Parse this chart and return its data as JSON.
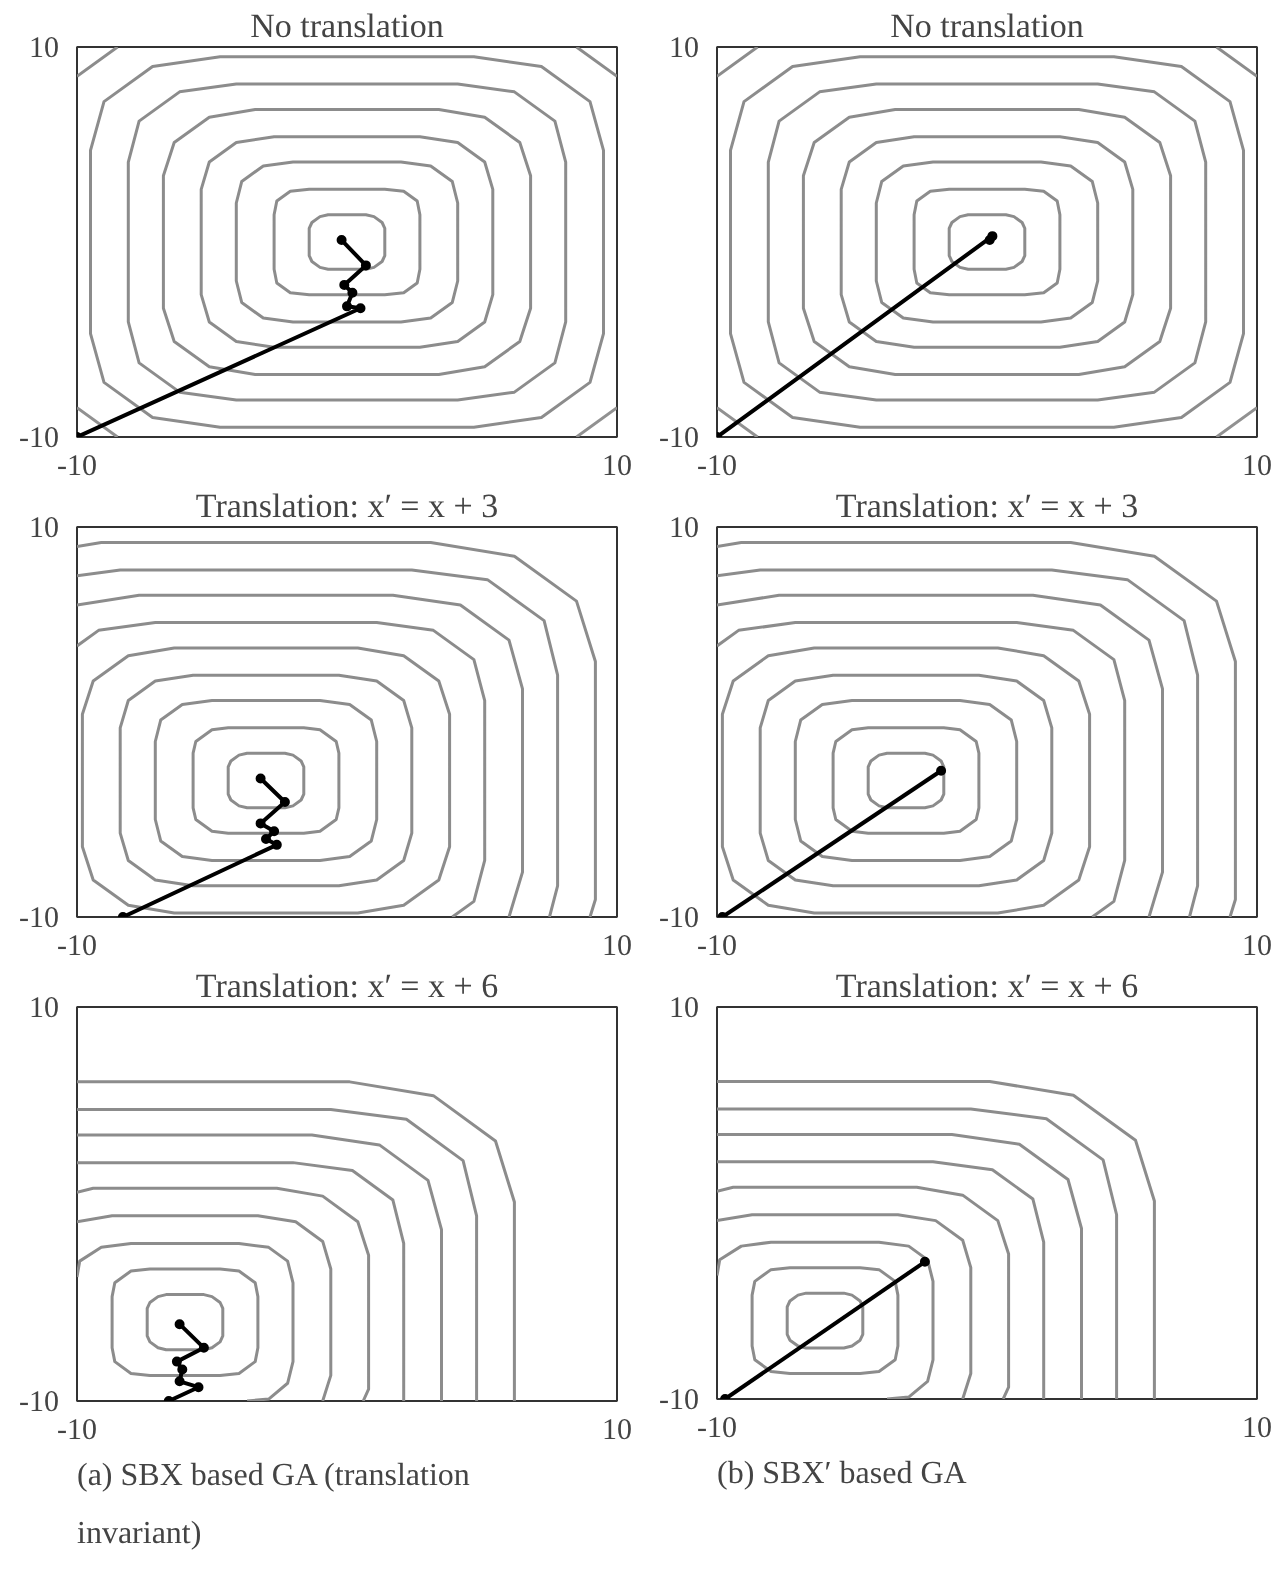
{
  "chart_data": [
    {
      "type": "line",
      "title": "No translation",
      "xlim": [
        -10,
        10
      ],
      "ylim": [
        -10,
        10
      ],
      "xticks": [
        -10,
        10
      ],
      "yticks": [
        -10,
        10
      ],
      "series": [
        {
          "color": "#8c8c8c",
          "x": [
            1.4,
            1.4,
            1.3,
            1.0,
            0.7,
            -0.7,
            -1.0,
            -1.3,
            -1.4,
            -1.4,
            null,
            -1.4,
            -1.4,
            -1.3,
            -1.0,
            -0.7,
            0.7,
            1.0,
            1.3,
            1.4,
            1.4,
            null,
            2.7,
            2.7,
            2.6,
            2.1,
            1.4,
            -1.4,
            -2.1,
            -2.6,
            -2.7,
            -2.7,
            null,
            -2.7,
            -2.7,
            -2.6,
            -2.1,
            -1.4,
            1.4,
            2.1,
            2.6,
            2.7,
            2.7,
            null,
            4.1,
            4.1,
            3.9,
            3.1,
            2.0,
            -2.0,
            -3.1,
            -3.9,
            -4.1,
            -4.1,
            null,
            -4.1,
            -4.1,
            -3.9,
            -3.1,
            -2.0,
            2.0,
            3.1,
            3.9,
            4.1,
            4.1,
            null,
            5.4,
            5.4,
            5.1,
            4.1,
            2.7,
            -2.7,
            -4.1,
            -5.1,
            -5.4,
            -5.4,
            null,
            -5.4,
            -5.4,
            -5.1,
            -4.1,
            -2.7,
            2.7,
            4.1,
            5.1,
            5.4,
            5.4,
            null,
            6.8,
            6.8,
            6.4,
            5.1,
            3.4,
            -3.4,
            -5.1,
            -6.4,
            -6.8,
            -6.8,
            null,
            -6.8,
            -6.8,
            -6.4,
            -5.1,
            -3.4,
            3.4,
            5.1,
            6.4,
            6.8,
            6.8,
            null,
            8.1,
            8.1,
            7.7,
            6.2,
            4.1,
            -4.1,
            -6.2,
            -7.7,
            -8.1,
            -8.1,
            null,
            -8.1,
            -8.1,
            -7.7,
            -6.2,
            -4.1,
            4.1,
            6.2,
            7.7,
            8.1,
            8.1,
            null,
            9.5,
            9.5,
            9.0,
            7.2,
            4.7,
            -4.7,
            -7.2,
            -9.0,
            -9.5,
            -9.5,
            null,
            -9.5,
            -9.5,
            -9.0,
            -7.2,
            -4.7,
            4.7,
            7.2,
            9.0,
            9.5,
            9.5,
            null,
            8.5,
            10,
            null,
            -8.5,
            -10
          ],
          "values": [
            0,
            0.7,
            1.0,
            1.3,
            1.4,
            1.4,
            1.3,
            1.0,
            0.7,
            0,
            null,
            0,
            -0.7,
            -1.0,
            -1.3,
            -1.4,
            -1.4,
            -1.3,
            -1.0,
            -0.7,
            0,
            null,
            0,
            1.4,
            2.1,
            2.6,
            2.7,
            2.7,
            2.6,
            2.1,
            1.4,
            0,
            null,
            0,
            -1.4,
            -2.1,
            -2.6,
            -2.7,
            -2.7,
            -2.6,
            -2.1,
            -1.4,
            0,
            null,
            0,
            2.0,
            3.1,
            3.9,
            4.1,
            4.1,
            3.9,
            3.1,
            2.0,
            0,
            null,
            0,
            -2.0,
            -3.1,
            -3.9,
            -4.1,
            -4.1,
            -3.9,
            -3.1,
            -2.0,
            0,
            null,
            0,
            2.7,
            4.1,
            5.1,
            5.4,
            5.4,
            5.1,
            4.1,
            2.7,
            0,
            null,
            0,
            -2.7,
            -4.1,
            -5.1,
            -5.4,
            -5.4,
            -5.1,
            -4.1,
            -2.7,
            0,
            null,
            0,
            3.4,
            5.1,
            6.4,
            6.8,
            6.8,
            6.4,
            5.1,
            3.4,
            0,
            null,
            0,
            -3.4,
            -5.1,
            -6.4,
            -6.8,
            -6.8,
            -6.4,
            -5.1,
            -3.4,
            0,
            null,
            0,
            4.1,
            6.2,
            7.7,
            8.1,
            8.1,
            7.7,
            6.2,
            4.1,
            0,
            null,
            0,
            -4.1,
            -6.2,
            -7.7,
            -8.1,
            -8.1,
            -7.7,
            -6.2,
            -4.1,
            0,
            null,
            0,
            4.7,
            7.2,
            9.0,
            9.5,
            9.5,
            9.0,
            7.2,
            4.7,
            0,
            null,
            0,
            -4.7,
            -7.2,
            -9.0,
            -9.5,
            -9.5,
            -9.0,
            -7.2,
            -4.7,
            0,
            null,
            10,
            8.5,
            null,
            10,
            8.5
          ]
        },
        {
          "color": "#919191",
          "x": [
            -10,
            -8.5,
            null,
            10,
            8.5
          ],
          "values": [
            -8.5,
            -10,
            null,
            -8.5,
            -10
          ]
        },
        {
          "color": "#000000",
          "marker": "circle",
          "x": [
            -10,
            0.5,
            0.0,
            0.2,
            -0.1,
            0.7,
            -0.2
          ],
          "values": [
            -10,
            -3.4,
            -3.3,
            -2.6,
            -2.2,
            -1.2,
            0.1
          ]
        }
      ]
    },
    {
      "type": "line",
      "title": "No translation",
      "xlim": [
        -10,
        10
      ],
      "ylim": [
        -10,
        10
      ],
      "xticks": [
        -10,
        10
      ],
      "yticks": [
        -10,
        10
      ],
      "series": [
        {
          "color": "#8c8c8c",
          "x": [
            1.4,
            1.4,
            1.3,
            1.0,
            0.7,
            -0.7,
            -1.0,
            -1.3,
            -1.4,
            -1.4,
            null,
            -1.4,
            -1.4,
            -1.3,
            -1.0,
            -0.7,
            0.7,
            1.0,
            1.3,
            1.4,
            1.4,
            null,
            2.7,
            2.7,
            2.6,
            2.1,
            1.4,
            -1.4,
            -2.1,
            -2.6,
            -2.7,
            -2.7,
            null,
            -2.7,
            -2.7,
            -2.6,
            -2.1,
            -1.4,
            1.4,
            2.1,
            2.6,
            2.7,
            2.7,
            null,
            4.1,
            4.1,
            3.9,
            3.1,
            2.0,
            -2.0,
            -3.1,
            -3.9,
            -4.1,
            -4.1,
            null,
            -4.1,
            -4.1,
            -3.9,
            -3.1,
            -2.0,
            2.0,
            3.1,
            3.9,
            4.1,
            4.1,
            null,
            5.4,
            5.4,
            5.1,
            4.1,
            2.7,
            -2.7,
            -4.1,
            -5.1,
            -5.4,
            -5.4,
            null,
            -5.4,
            -5.4,
            -5.1,
            -4.1,
            -2.7,
            2.7,
            4.1,
            5.1,
            5.4,
            5.4,
            null,
            6.8,
            6.8,
            6.4,
            5.1,
            3.4,
            -3.4,
            -5.1,
            -6.4,
            -6.8,
            -6.8,
            null,
            -6.8,
            -6.8,
            -6.4,
            -5.1,
            -3.4,
            3.4,
            5.1,
            6.4,
            6.8,
            6.8,
            null,
            8.1,
            8.1,
            7.7,
            6.2,
            4.1,
            -4.1,
            -6.2,
            -7.7,
            -8.1,
            -8.1,
            null,
            -8.1,
            -8.1,
            -7.7,
            -6.2,
            -4.1,
            4.1,
            6.2,
            7.7,
            8.1,
            8.1,
            null,
            9.5,
            9.5,
            9.0,
            7.2,
            4.7,
            -4.7,
            -7.2,
            -9.0,
            -9.5,
            -9.5,
            null,
            -9.5,
            -9.5,
            -9.0,
            -7.2,
            -4.7,
            4.7,
            7.2,
            9.0,
            9.5,
            9.5,
            null,
            8.5,
            10,
            null,
            -8.5,
            -10
          ],
          "values": [
            0,
            0.7,
            1.0,
            1.3,
            1.4,
            1.4,
            1.3,
            1.0,
            0.7,
            0,
            null,
            0,
            -0.7,
            -1.0,
            -1.3,
            -1.4,
            -1.4,
            -1.3,
            -1.0,
            -0.7,
            0,
            null,
            0,
            1.4,
            2.1,
            2.6,
            2.7,
            2.7,
            2.6,
            2.1,
            1.4,
            0,
            null,
            0,
            -1.4,
            -2.1,
            -2.6,
            -2.7,
            -2.7,
            -2.6,
            -2.1,
            -1.4,
            0,
            null,
            0,
            2.0,
            3.1,
            3.9,
            4.1,
            4.1,
            3.9,
            3.1,
            2.0,
            0,
            null,
            0,
            -2.0,
            -3.1,
            -3.9,
            -4.1,
            -4.1,
            -3.9,
            -3.1,
            -2.0,
            0,
            null,
            0,
            2.7,
            4.1,
            5.1,
            5.4,
            5.4,
            5.1,
            4.1,
            2.7,
            0,
            null,
            0,
            -2.7,
            -4.1,
            -5.1,
            -5.4,
            -5.4,
            -5.1,
            -4.1,
            -2.7,
            0,
            null,
            0,
            3.4,
            5.1,
            6.4,
            6.8,
            6.8,
            6.4,
            5.1,
            3.4,
            0,
            null,
            0,
            -3.4,
            -5.1,
            -6.4,
            -6.8,
            -6.8,
            -6.4,
            -5.1,
            -3.4,
            0,
            null,
            0,
            4.1,
            6.2,
            7.7,
            8.1,
            8.1,
            7.7,
            6.2,
            4.1,
            0,
            null,
            0,
            -4.1,
            -6.2,
            -7.7,
            -8.1,
            -8.1,
            -7.7,
            -6.2,
            -4.1,
            0,
            null,
            0,
            4.7,
            7.2,
            9.0,
            9.5,
            9.5,
            9.0,
            7.2,
            4.7,
            0,
            null,
            0,
            -4.7,
            -7.2,
            -9.0,
            -9.5,
            -9.5,
            -9.0,
            -7.2,
            -4.7,
            0,
            null,
            10,
            8.5,
            null,
            10,
            8.5
          ]
        },
        {
          "color": "#919191",
          "x": [
            -10,
            -8.5,
            null,
            10,
            8.5
          ],
          "values": [
            -8.5,
            -10,
            null,
            -8.5,
            -10
          ]
        },
        {
          "color": "#000000",
          "marker": "circle",
          "x": [
            -10,
            0.2,
            0.1
          ],
          "values": [
            -10,
            0.3,
            0.1
          ]
        }
      ]
    },
    {
      "type": "line",
      "title": "Translation: x′ = x + 3",
      "xlim": [
        -10,
        10
      ],
      "ylim": [
        -10,
        10
      ],
      "xticks": [
        -10,
        10
      ],
      "yticks": [
        -10,
        10
      ],
      "series": [
        {
          "color": "#8c8c8c",
          "x": [
            -1.6,
            -1.6,
            -1.7,
            -2.0,
            -2.3,
            -3.7,
            -4.0,
            -4.3,
            -4.4,
            -4.4,
            null,
            -4.4,
            -4.4,
            -4.3,
            -4.0,
            -3.7,
            -2.3,
            -2.0,
            -1.7,
            -1.6,
            -1.6,
            null,
            -0.3,
            -0.3,
            -0.4,
            -1.0,
            -1.6,
            -4.4,
            -5.0,
            -5.6,
            -5.7,
            -5.7,
            null,
            -5.7,
            -5.7,
            -5.6,
            -5.0,
            -4.4,
            -1.6,
            -1.0,
            -0.4,
            -0.3,
            -0.3,
            null,
            1.1,
            1.1,
            0.9,
            0.1,
            -1.0,
            -5.0,
            -6.1,
            -6.9,
            -7.1,
            -7.1,
            null,
            -7.1,
            -7.1,
            -6.9,
            -6.1,
            -5.0,
            -1.0,
            0.1,
            0.9,
            1.1,
            1.1,
            null,
            2.4,
            2.4,
            2.1,
            1.1,
            -0.3,
            -5.7,
            -7.1,
            -8.1,
            -8.4,
            -8.4,
            null,
            -8.4,
            -8.4,
            -8.1,
            -7.1,
            -5.7,
            -0.3,
            1.1,
            2.1,
            2.4,
            2.4,
            null,
            3.8,
            3.8,
            3.4,
            2.1,
            0.4,
            -6.4,
            -8.1,
            -9.4,
            -9.8,
            -9.8,
            null,
            -9.8,
            -9.8,
            -9.4,
            -8.1,
            -6.4,
            0.4,
            2.1,
            3.4,
            3.8,
            3.8,
            null,
            -10,
            -9.2,
            -7.1,
            1.1,
            3.2,
            4.7,
            5.1,
            5.1,
            null,
            5.1,
            5.1,
            4.7,
            3.9,
            null,
            -10,
            -7.7,
            1.7,
            4.2,
            6.0,
            6.5,
            6.5,
            null,
            6.5,
            6.5,
            6.0,
            null,
            -10,
            -8.4,
            2.4,
            5.2,
            7.3,
            7.8,
            7.8,
            null,
            7.8,
            7.8,
            7.5,
            null,
            -10,
            -9.1,
            3.1,
            6.2,
            8.5,
            9.2,
            9.2,
            null,
            9.2,
            9.2,
            9.0
          ],
          "values": [
            -3.0,
            -2.3,
            -2.0,
            -1.7,
            -1.6,
            -1.6,
            -1.7,
            -2.0,
            -2.3,
            -3.0,
            null,
            -3.0,
            -3.7,
            -4.0,
            -4.3,
            -4.4,
            -4.4,
            -4.3,
            -4.0,
            -3.7,
            -3.0,
            null,
            -3.0,
            -1.6,
            -1.0,
            -0.4,
            -0.3,
            -0.3,
            -0.4,
            -1.0,
            -1.6,
            -3.0,
            null,
            -3.0,
            -4.4,
            -5.0,
            -5.6,
            -5.7,
            -5.7,
            -5.6,
            -5.0,
            -4.4,
            -3.0,
            null,
            -3.0,
            -1.0,
            0.1,
            0.9,
            1.1,
            1.1,
            0.9,
            0.1,
            -1.0,
            -3.0,
            null,
            -3.0,
            -5.0,
            -6.1,
            -6.9,
            -7.1,
            -7.1,
            -6.9,
            -6.1,
            -5.0,
            -3.0,
            null,
            -3.0,
            -0.3,
            1.1,
            2.1,
            2.4,
            2.4,
            2.1,
            1.1,
            -0.3,
            -3.0,
            null,
            -3.0,
            -5.7,
            -7.1,
            -8.1,
            -8.4,
            -8.4,
            -8.1,
            -7.1,
            -5.7,
            -3.0,
            null,
            -3.0,
            0.4,
            2.1,
            3.4,
            3.8,
            3.8,
            3.4,
            2.1,
            0.4,
            -3.0,
            null,
            -3.0,
            -6.4,
            -8.1,
            -9.4,
            -9.8,
            -9.8,
            -9.4,
            -8.1,
            -6.4,
            -3.0,
            null,
            3.9,
            4.7,
            5.1,
            5.1,
            4.7,
            3.2,
            1.1,
            -3.0,
            null,
            -3.0,
            -7.1,
            -9.2,
            -10,
            null,
            6.0,
            6.5,
            6.5,
            6.0,
            4.2,
            1.7,
            -3.0,
            null,
            -3.0,
            -7.7,
            -10,
            null,
            7.5,
            7.8,
            7.8,
            7.3,
            5.2,
            2.4,
            -3.0,
            null,
            -3.0,
            -8.4,
            -10,
            null,
            9.0,
            9.2,
            9.2,
            8.5,
            6.2,
            3.1,
            -3.0,
            null,
            -3.0,
            -9.1,
            -10
          ]
        },
        {
          "color": "#000000",
          "marker": "circle",
          "x": [
            -8.3,
            -2.6,
            -3.0,
            -2.7,
            -3.2,
            -2.3,
            -3.2
          ],
          "values": [
            -10,
            -6.3,
            -6.0,
            -5.6,
            -5.2,
            -4.1,
            -2.9
          ]
        }
      ]
    },
    {
      "type": "line",
      "title": "Translation: x′ = x + 3",
      "xlim": [
        -10,
        10
      ],
      "ylim": [
        -10,
        10
      ],
      "xticks": [
        -10,
        10
      ],
      "yticks": [
        -10,
        10
      ],
      "series": [
        {
          "color": "#8c8c8c",
          "x": [
            -1.6,
            -1.6,
            -1.7,
            -2.0,
            -2.3,
            -3.7,
            -4.0,
            -4.3,
            -4.4,
            -4.4,
            null,
            -4.4,
            -4.4,
            -4.3,
            -4.0,
            -3.7,
            -2.3,
            -2.0,
            -1.7,
            -1.6,
            -1.6,
            null,
            -0.3,
            -0.3,
            -0.4,
            -1.0,
            -1.6,
            -4.4,
            -5.0,
            -5.6,
            -5.7,
            -5.7,
            null,
            -5.7,
            -5.7,
            -5.6,
            -5.0,
            -4.4,
            -1.6,
            -1.0,
            -0.4,
            -0.3,
            -0.3,
            null,
            1.1,
            1.1,
            0.9,
            0.1,
            -1.0,
            -5.0,
            -6.1,
            -6.9,
            -7.1,
            -7.1,
            null,
            -7.1,
            -7.1,
            -6.9,
            -6.1,
            -5.0,
            -1.0,
            0.1,
            0.9,
            1.1,
            1.1,
            null,
            2.4,
            2.4,
            2.1,
            1.1,
            -0.3,
            -5.7,
            -7.1,
            -8.1,
            -8.4,
            -8.4,
            null,
            -8.4,
            -8.4,
            -8.1,
            -7.1,
            -5.7,
            -0.3,
            1.1,
            2.1,
            2.4,
            2.4,
            null,
            3.8,
            3.8,
            3.4,
            2.1,
            0.4,
            -6.4,
            -8.1,
            -9.4,
            -9.8,
            -9.8,
            null,
            -9.8,
            -9.8,
            -9.4,
            -8.1,
            -6.4,
            0.4,
            2.1,
            3.4,
            3.8,
            3.8,
            null,
            -10,
            -9.2,
            -7.1,
            1.1,
            3.2,
            4.7,
            5.1,
            5.1,
            null,
            5.1,
            5.1,
            4.7,
            3.9,
            null,
            -10,
            -7.7,
            1.7,
            4.2,
            6.0,
            6.5,
            6.5,
            null,
            6.5,
            6.5,
            6.0,
            null,
            -10,
            -8.4,
            2.4,
            5.2,
            7.3,
            7.8,
            7.8,
            null,
            7.8,
            7.8,
            7.5,
            null,
            -10,
            -9.1,
            3.1,
            6.2,
            8.5,
            9.2,
            9.2,
            null,
            9.2,
            9.2,
            9.0
          ],
          "values": [
            -3.0,
            -2.3,
            -2.0,
            -1.7,
            -1.6,
            -1.6,
            -1.7,
            -2.0,
            -2.3,
            -3.0,
            null,
            -3.0,
            -3.7,
            -4.0,
            -4.3,
            -4.4,
            -4.4,
            -4.3,
            -4.0,
            -3.7,
            -3.0,
            null,
            -3.0,
            -1.6,
            -1.0,
            -0.4,
            -0.3,
            -0.3,
            -0.4,
            -1.0,
            -1.6,
            -3.0,
            null,
            -3.0,
            -4.4,
            -5.0,
            -5.6,
            -5.7,
            -5.7,
            -5.6,
            -5.0,
            -4.4,
            -3.0,
            null,
            -3.0,
            -1.0,
            0.1,
            0.9,
            1.1,
            1.1,
            0.9,
            0.1,
            -1.0,
            -3.0,
            null,
            -3.0,
            -5.0,
            -6.1,
            -6.9,
            -7.1,
            -7.1,
            -6.9,
            -6.1,
            -5.0,
            -3.0,
            null,
            -3.0,
            -0.3,
            1.1,
            2.1,
            2.4,
            2.4,
            2.1,
            1.1,
            -0.3,
            -3.0,
            null,
            -3.0,
            -5.7,
            -7.1,
            -8.1,
            -8.4,
            -8.4,
            -8.1,
            -7.1,
            -5.7,
            -3.0,
            null,
            -3.0,
            0.4,
            2.1,
            3.4,
            3.8,
            3.8,
            3.4,
            2.1,
            0.4,
            -3.0,
            null,
            -3.0,
            -6.4,
            -8.1,
            -9.4,
            -9.8,
            -9.8,
            -9.4,
            -8.1,
            -6.4,
            -3.0,
            null,
            3.9,
            4.7,
            5.1,
            5.1,
            4.7,
            3.2,
            1.1,
            -3.0,
            null,
            -3.0,
            -7.1,
            -9.2,
            -10,
            null,
            6.0,
            6.5,
            6.5,
            6.0,
            4.2,
            1.7,
            -3.0,
            null,
            -3.0,
            -7.7,
            -10,
            null,
            7.5,
            7.8,
            7.8,
            7.3,
            5.2,
            2.4,
            -3.0,
            null,
            -3.0,
            -8.4,
            -10,
            null,
            9.0,
            9.2,
            9.2,
            8.5,
            6.2,
            3.1,
            -3.0,
            null,
            -3.0,
            -9.1,
            -10
          ]
        },
        {
          "color": "#000000",
          "marker": "circle",
          "x": [
            -9.8,
            -1.7
          ],
          "values": [
            -10,
            -2.5
          ]
        }
      ]
    },
    {
      "type": "line",
      "title": "Translation: x′ = x + 6",
      "xlim": [
        -10,
        10
      ],
      "ylim": [
        -10,
        10
      ],
      "xticks": [
        -10,
        10
      ],
      "yticks": [
        -10,
        10
      ],
      "annotations": [
        "(a) SBX based GA (translation invariant)"
      ],
      "series": [
        {
          "color": "#8c8c8c",
          "x": [
            -4.6,
            -4.6,
            -4.7,
            -5.0,
            -5.3,
            -6.7,
            -7.0,
            -7.3,
            -7.4,
            -7.4,
            null,
            -7.4,
            -7.4,
            -7.3,
            -7.0,
            -6.7,
            -5.3,
            -5.0,
            -4.7,
            -4.6,
            -4.6,
            null,
            -3.3,
            -3.3,
            -3.4,
            -4.0,
            -4.7,
            -7.3,
            -8.0,
            -8.6,
            -8.7,
            -8.7,
            null,
            -8.7,
            -8.7,
            -8.6,
            -8.0,
            -7.3,
            -4.7,
            -4.0,
            -3.4,
            -3.3,
            -3.3,
            null,
            -10,
            -9.9,
            -9.1,
            -8.0,
            -4.0,
            -2.9,
            -2.2,
            -2.0,
            -2.0,
            null,
            -2.0,
            -2.0,
            -2.2,
            -2.9,
            -3.7,
            null,
            -10,
            -8.7,
            -3.3,
            -1.9,
            -0.9,
            -0.6,
            -0.6,
            null,
            -0.6,
            -0.6,
            -0.9,
            null,
            -10,
            -9.4,
            -2.6,
            -0.9,
            0.4,
            0.8,
            0.8,
            null,
            0.8,
            0.8,
            0.6,
            null,
            -10,
            -2.0,
            0.2,
            1.7,
            2.1,
            2.1,
            null,
            -10,
            -1.3,
            1.2,
            3.0,
            3.5,
            3.5,
            null,
            -10,
            -0.6,
            2.2,
            4.3,
            4.8,
            4.8,
            null,
            -10,
            0.1,
            3.2,
            5.5,
            6.2,
            6.2
          ],
          "values": [
            -6.0,
            -5.3,
            -5.0,
            -4.7,
            -4.6,
            -4.6,
            -4.7,
            -5.0,
            -5.3,
            -6.0,
            null,
            -6.0,
            -6.7,
            -7.0,
            -7.3,
            -7.4,
            -7.4,
            -7.3,
            -7.0,
            -6.7,
            -6.0,
            null,
            -6.0,
            -4.7,
            -4.0,
            -3.4,
            -3.3,
            -3.3,
            -3.4,
            -4.0,
            -4.7,
            -6.0,
            null,
            -6.0,
            -7.3,
            -8.0,
            -8.6,
            -8.7,
            -8.7,
            -8.6,
            -8.0,
            -7.3,
            -6.0,
            null,
            -3.7,
            -2.9,
            -2.2,
            -2.0,
            -2.0,
            -2.2,
            -2.9,
            -4.0,
            -6.0,
            null,
            -6.0,
            -8.0,
            -9.1,
            -9.9,
            -10,
            null,
            -0.9,
            -0.6,
            -0.6,
            -0.9,
            -1.9,
            -3.3,
            -6.0,
            null,
            -6.0,
            -8.7,
            -10,
            null,
            0.6,
            0.8,
            0.8,
            0.4,
            -0.9,
            -2.6,
            -6.0,
            null,
            -6.0,
            -9.4,
            -10,
            null,
            2.1,
            2.1,
            1.7,
            0.2,
            -2.0,
            -10,
            null,
            3.5,
            3.5,
            3.0,
            1.2,
            -1.3,
            -10,
            null,
            4.8,
            4.8,
            4.3,
            2.2,
            -0.6,
            -10,
            null,
            6.2,
            6.2,
            5.5,
            3.2,
            0.1,
            -10
          ]
        },
        {
          "color": "#000000",
          "marker": "circle",
          "x": [
            -6.6,
            -5.5,
            -6.2,
            -6.1,
            -6.3,
            -5.3,
            -6.2
          ],
          "values": [
            -10,
            -9.3,
            -9.0,
            -8.4,
            -8.0,
            -7.3,
            -6.1
          ]
        }
      ]
    },
    {
      "type": "line",
      "title": "Translation: x′ = x + 6",
      "xlim": [
        -10,
        10
      ],
      "ylim": [
        -10,
        10
      ],
      "xticks": [
        -10,
        10
      ],
      "yticks": [
        -10,
        10
      ],
      "annotations": [
        "(b) SBX′ based GA"
      ],
      "series": [
        {
          "color": "#8c8c8c",
          "x": [
            -4.6,
            -4.6,
            -4.7,
            -5.0,
            -5.3,
            -6.7,
            -7.0,
            -7.3,
            -7.4,
            -7.4,
            null,
            -7.4,
            -7.4,
            -7.3,
            -7.0,
            -6.7,
            -5.3,
            -5.0,
            -4.7,
            -4.6,
            -4.6,
            null,
            -3.3,
            -3.3,
            -3.4,
            -4.0,
            -4.7,
            -7.3,
            -8.0,
            -8.6,
            -8.7,
            -8.7,
            null,
            -8.7,
            -8.7,
            -8.6,
            -8.0,
            -7.3,
            -4.7,
            -4.0,
            -3.4,
            -3.3,
            -3.3,
            null,
            -10,
            -9.9,
            -9.1,
            -8.0,
            -4.0,
            -2.9,
            -2.2,
            -2.0,
            -2.0,
            null,
            -2.0,
            -2.0,
            -2.2,
            -2.9,
            -3.7,
            null,
            -10,
            -8.7,
            -3.3,
            -1.9,
            -0.9,
            -0.6,
            -0.6,
            null,
            -0.6,
            -0.6,
            -0.9,
            null,
            -10,
            -9.4,
            -2.6,
            -0.9,
            0.4,
            0.8,
            0.8,
            null,
            0.8,
            0.8,
            0.6,
            null,
            -10,
            -2.0,
            0.2,
            1.7,
            2.1,
            2.1,
            null,
            -10,
            -1.3,
            1.2,
            3.0,
            3.5,
            3.5,
            null,
            -10,
            -0.6,
            2.2,
            4.3,
            4.8,
            4.8,
            null,
            -10,
            0.1,
            3.2,
            5.5,
            6.2,
            6.2
          ],
          "values": [
            -6.0,
            -5.3,
            -5.0,
            -4.7,
            -4.6,
            -4.6,
            -4.7,
            -5.0,
            -5.3,
            -6.0,
            null,
            -6.0,
            -6.7,
            -7.0,
            -7.3,
            -7.4,
            -7.4,
            -7.3,
            -7.0,
            -6.7,
            -6.0,
            null,
            -6.0,
            -4.7,
            -4.0,
            -3.4,
            -3.3,
            -3.3,
            -3.4,
            -4.0,
            -4.7,
            -6.0,
            null,
            -6.0,
            -7.3,
            -8.0,
            -8.6,
            -8.7,
            -8.7,
            -8.6,
            -8.0,
            -7.3,
            -6.0,
            null,
            -3.7,
            -2.9,
            -2.2,
            -2.0,
            -2.0,
            -2.2,
            -2.9,
            -4.0,
            -6.0,
            null,
            -6.0,
            -8.0,
            -9.1,
            -9.9,
            -10,
            null,
            -0.9,
            -0.6,
            -0.6,
            -0.9,
            -1.9,
            -3.3,
            -6.0,
            null,
            -6.0,
            -8.7,
            -10,
            null,
            0.6,
            0.8,
            0.8,
            0.4,
            -0.9,
            -2.6,
            -6.0,
            null,
            -6.0,
            -9.4,
            -10,
            null,
            2.1,
            2.1,
            1.7,
            0.2,
            -2.0,
            -10,
            null,
            3.5,
            3.5,
            3.0,
            1.2,
            -1.3,
            -10,
            null,
            4.8,
            4.8,
            4.3,
            2.2,
            -0.6,
            -10,
            null,
            6.2,
            6.2,
            5.5,
            3.2,
            0.1,
            -10
          ]
        },
        {
          "color": "#000000",
          "marker": "circle",
          "x": [
            -9.7,
            -2.3
          ],
          "values": [
            -10,
            -3.0
          ]
        }
      ]
    }
  ]
}
